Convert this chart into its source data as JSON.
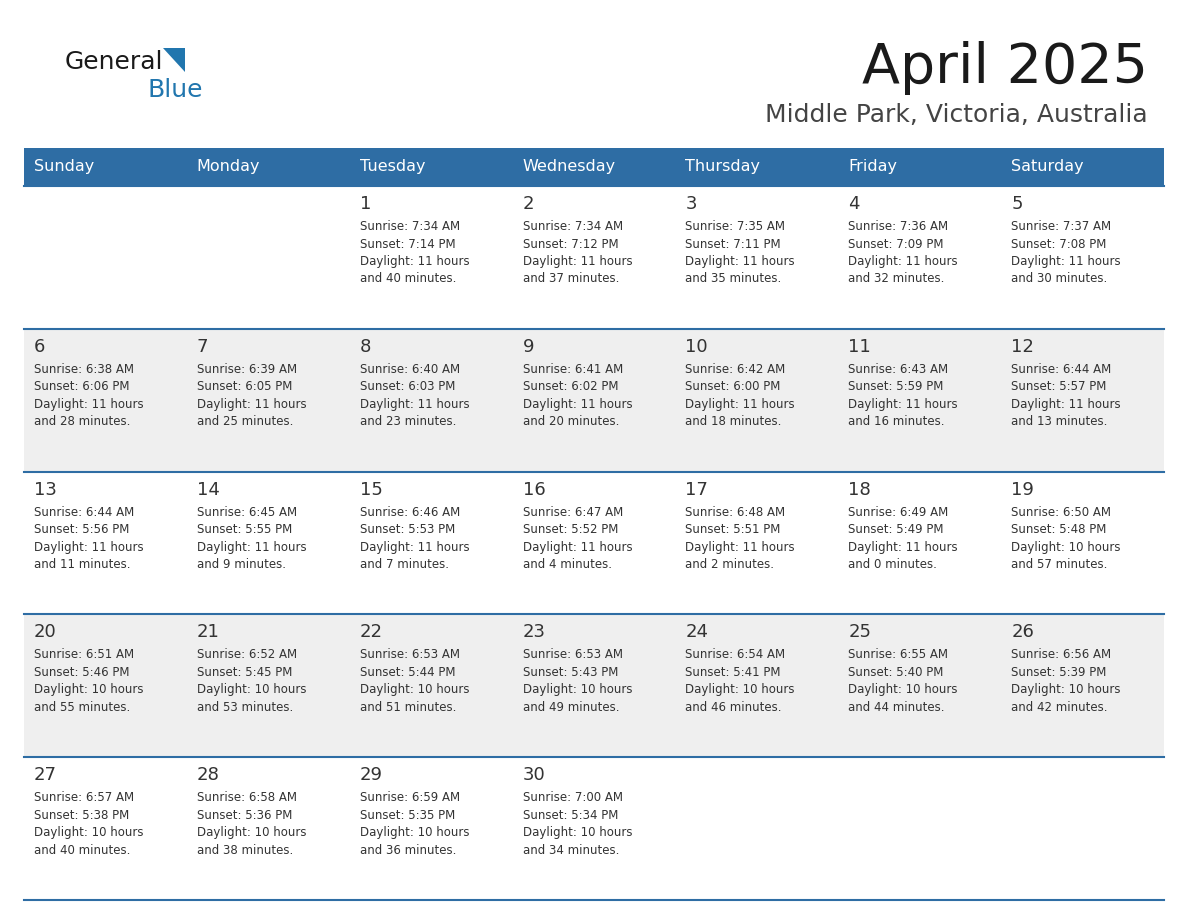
{
  "title": "April 2025",
  "subtitle": "Middle Park, Victoria, Australia",
  "header_bg": "#2E6DA4",
  "header_text_color": "#FFFFFF",
  "cell_bg_white": "#FFFFFF",
  "cell_bg_gray": "#EFEFEF",
  "day_number_color": "#333333",
  "day_text_color": "#333333",
  "grid_line_color": "#2E6DA4",
  "days_of_week": [
    "Sunday",
    "Monday",
    "Tuesday",
    "Wednesday",
    "Thursday",
    "Friday",
    "Saturday"
  ],
  "logo_text1": "General",
  "logo_text2": "Blue",
  "logo_color1": "#1a1a1a",
  "logo_color2": "#2176AE",
  "logo_tri_color": "#2176AE",
  "calendar": [
    [
      {
        "day": 0,
        "text": ""
      },
      {
        "day": 0,
        "text": ""
      },
      {
        "day": 1,
        "text": "Sunrise: 7:34 AM\nSunset: 7:14 PM\nDaylight: 11 hours\nand 40 minutes."
      },
      {
        "day": 2,
        "text": "Sunrise: 7:34 AM\nSunset: 7:12 PM\nDaylight: 11 hours\nand 37 minutes."
      },
      {
        "day": 3,
        "text": "Sunrise: 7:35 AM\nSunset: 7:11 PM\nDaylight: 11 hours\nand 35 minutes."
      },
      {
        "day": 4,
        "text": "Sunrise: 7:36 AM\nSunset: 7:09 PM\nDaylight: 11 hours\nand 32 minutes."
      },
      {
        "day": 5,
        "text": "Sunrise: 7:37 AM\nSunset: 7:08 PM\nDaylight: 11 hours\nand 30 minutes."
      }
    ],
    [
      {
        "day": 6,
        "text": "Sunrise: 6:38 AM\nSunset: 6:06 PM\nDaylight: 11 hours\nand 28 minutes."
      },
      {
        "day": 7,
        "text": "Sunrise: 6:39 AM\nSunset: 6:05 PM\nDaylight: 11 hours\nand 25 minutes."
      },
      {
        "day": 8,
        "text": "Sunrise: 6:40 AM\nSunset: 6:03 PM\nDaylight: 11 hours\nand 23 minutes."
      },
      {
        "day": 9,
        "text": "Sunrise: 6:41 AM\nSunset: 6:02 PM\nDaylight: 11 hours\nand 20 minutes."
      },
      {
        "day": 10,
        "text": "Sunrise: 6:42 AM\nSunset: 6:00 PM\nDaylight: 11 hours\nand 18 minutes."
      },
      {
        "day": 11,
        "text": "Sunrise: 6:43 AM\nSunset: 5:59 PM\nDaylight: 11 hours\nand 16 minutes."
      },
      {
        "day": 12,
        "text": "Sunrise: 6:44 AM\nSunset: 5:57 PM\nDaylight: 11 hours\nand 13 minutes."
      }
    ],
    [
      {
        "day": 13,
        "text": "Sunrise: 6:44 AM\nSunset: 5:56 PM\nDaylight: 11 hours\nand 11 minutes."
      },
      {
        "day": 14,
        "text": "Sunrise: 6:45 AM\nSunset: 5:55 PM\nDaylight: 11 hours\nand 9 minutes."
      },
      {
        "day": 15,
        "text": "Sunrise: 6:46 AM\nSunset: 5:53 PM\nDaylight: 11 hours\nand 7 minutes."
      },
      {
        "day": 16,
        "text": "Sunrise: 6:47 AM\nSunset: 5:52 PM\nDaylight: 11 hours\nand 4 minutes."
      },
      {
        "day": 17,
        "text": "Sunrise: 6:48 AM\nSunset: 5:51 PM\nDaylight: 11 hours\nand 2 minutes."
      },
      {
        "day": 18,
        "text": "Sunrise: 6:49 AM\nSunset: 5:49 PM\nDaylight: 11 hours\nand 0 minutes."
      },
      {
        "day": 19,
        "text": "Sunrise: 6:50 AM\nSunset: 5:48 PM\nDaylight: 10 hours\nand 57 minutes."
      }
    ],
    [
      {
        "day": 20,
        "text": "Sunrise: 6:51 AM\nSunset: 5:46 PM\nDaylight: 10 hours\nand 55 minutes."
      },
      {
        "day": 21,
        "text": "Sunrise: 6:52 AM\nSunset: 5:45 PM\nDaylight: 10 hours\nand 53 minutes."
      },
      {
        "day": 22,
        "text": "Sunrise: 6:53 AM\nSunset: 5:44 PM\nDaylight: 10 hours\nand 51 minutes."
      },
      {
        "day": 23,
        "text": "Sunrise: 6:53 AM\nSunset: 5:43 PM\nDaylight: 10 hours\nand 49 minutes."
      },
      {
        "day": 24,
        "text": "Sunrise: 6:54 AM\nSunset: 5:41 PM\nDaylight: 10 hours\nand 46 minutes."
      },
      {
        "day": 25,
        "text": "Sunrise: 6:55 AM\nSunset: 5:40 PM\nDaylight: 10 hours\nand 44 minutes."
      },
      {
        "day": 26,
        "text": "Sunrise: 6:56 AM\nSunset: 5:39 PM\nDaylight: 10 hours\nand 42 minutes."
      }
    ],
    [
      {
        "day": 27,
        "text": "Sunrise: 6:57 AM\nSunset: 5:38 PM\nDaylight: 10 hours\nand 40 minutes."
      },
      {
        "day": 28,
        "text": "Sunrise: 6:58 AM\nSunset: 5:36 PM\nDaylight: 10 hours\nand 38 minutes."
      },
      {
        "day": 29,
        "text": "Sunrise: 6:59 AM\nSunset: 5:35 PM\nDaylight: 10 hours\nand 36 minutes."
      },
      {
        "day": 30,
        "text": "Sunrise: 7:00 AM\nSunset: 5:34 PM\nDaylight: 10 hours\nand 34 minutes."
      },
      {
        "day": 0,
        "text": ""
      },
      {
        "day": 0,
        "text": ""
      },
      {
        "day": 0,
        "text": ""
      }
    ]
  ],
  "row_backgrounds": [
    "#FFFFFF",
    "#EFEFEF",
    "#FFFFFF",
    "#EFEFEF",
    "#FFFFFF"
  ]
}
